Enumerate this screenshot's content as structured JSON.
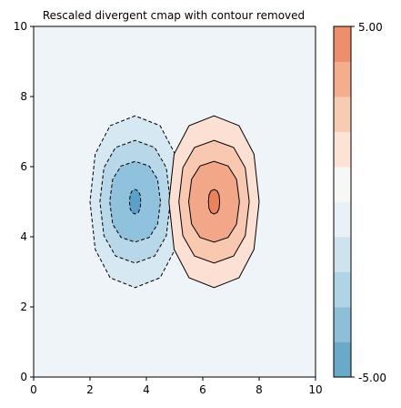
{
  "chart_data": {
    "type": "contour",
    "title": "Rescaled divergent cmap with contour removed",
    "xlabel": "",
    "ylabel": "",
    "xlim": [
      0,
      10
    ],
    "ylim": [
      0,
      10
    ],
    "x_ticks": [
      "0",
      "2",
      "4",
      "6",
      "8",
      "10"
    ],
    "y_ticks": [
      "0",
      "2",
      "4",
      "6",
      "8",
      "10"
    ],
    "grid": false,
    "colorbar": {
      "range": [
        -5,
        5
      ],
      "labels": {
        "top": "5.00",
        "bottom": "-5.00"
      },
      "bands": [
        {
          "level": -5,
          "color": "#6aa9c9"
        },
        {
          "level": -4,
          "color": "#8ebfd9"
        },
        {
          "level": -3,
          "color": "#b0d3e5"
        },
        {
          "level": -2,
          "color": "#cfe3ee"
        },
        {
          "level": -1,
          "color": "#e8f1f6"
        },
        {
          "level": 0,
          "color": "#f7f7f7"
        },
        {
          "level": 1,
          "color": "#fce3d5"
        },
        {
          "level": 2,
          "color": "#f8cbb3"
        },
        {
          "level": 3,
          "color": "#f4ad8d"
        },
        {
          "level": 4,
          "color": "#eb8f6c"
        }
      ]
    },
    "background_color": "#eef4f8",
    "features": [
      {
        "sign": "negative",
        "center": [
          3.6,
          5.0
        ],
        "line_style": "dashed",
        "levels": [
          {
            "halfwidth_x": 1.6,
            "halfheight_y": 2.45,
            "fill": "#d6e8f2"
          },
          {
            "halfwidth_x": 1.25,
            "halfheight_y": 1.75,
            "fill": "#b8d8ea"
          },
          {
            "halfwidth_x": 0.9,
            "halfheight_y": 1.15,
            "fill": "#90c2de"
          },
          {
            "halfwidth_x": 0.2,
            "halfheight_y": 0.35,
            "fill": "#5aa0c8"
          }
        ]
      },
      {
        "sign": "positive",
        "center": [
          6.4,
          5.0
        ],
        "line_style": "solid",
        "levels": [
          {
            "halfwidth_x": 1.6,
            "halfheight_y": 2.45,
            "fill": "#fbe0d3"
          },
          {
            "halfwidth_x": 1.25,
            "halfheight_y": 1.75,
            "fill": "#f8c8b0"
          },
          {
            "halfwidth_x": 0.9,
            "halfheight_y": 1.15,
            "fill": "#f2a888"
          },
          {
            "halfwidth_x": 0.2,
            "halfheight_y": 0.35,
            "fill": "#e8835e"
          }
        ]
      }
    ]
  }
}
